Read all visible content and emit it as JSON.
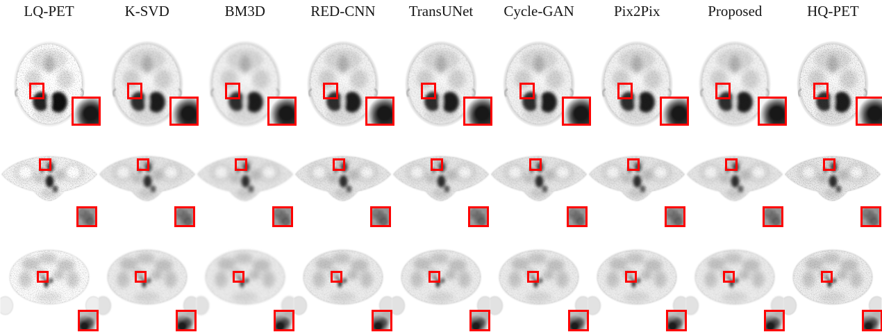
{
  "figure": {
    "methods": [
      "LQ-PET",
      "K-SVD",
      "BM3D",
      "RED-CNN",
      "TransUNet",
      "Cycle-GAN",
      "Pix2Pix",
      "Proposed",
      "HQ-PET"
    ],
    "rows": [
      {
        "kind": "head",
        "icon": "brain-axial-pet-scan-icon"
      },
      {
        "kind": "chest",
        "icon": "shoulder-axial-pet-scan-icon"
      },
      {
        "kind": "abdomen",
        "icon": "abdomen-axial-pet-scan-icon"
      }
    ],
    "roi_color": "#fe0000"
  }
}
